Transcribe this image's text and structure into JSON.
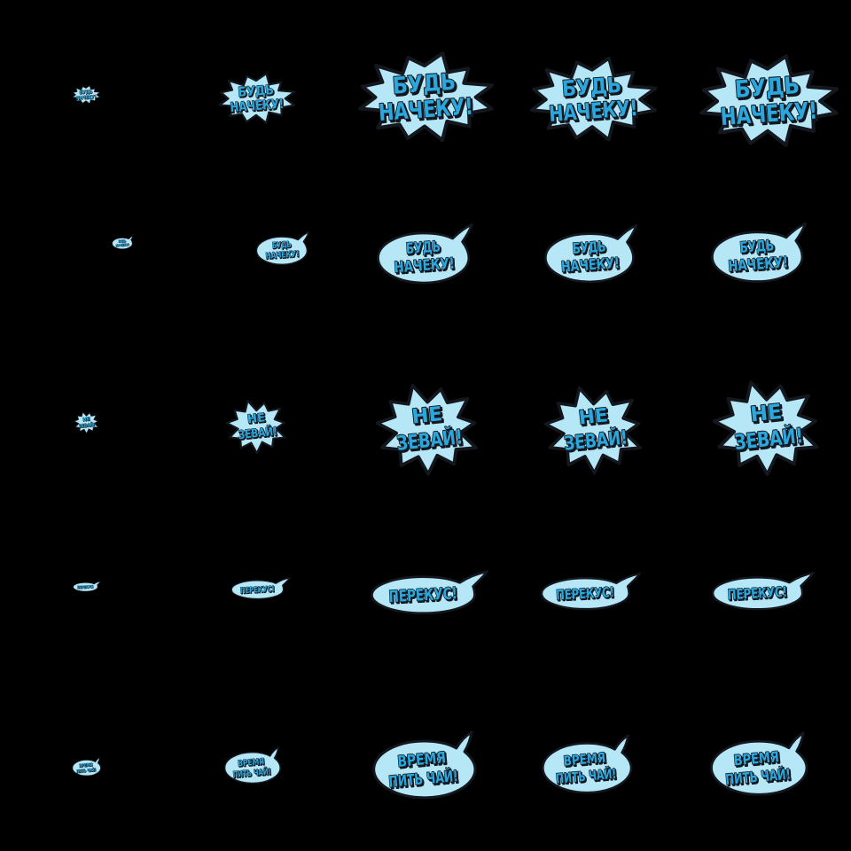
{
  "page": {
    "title": "sticker-pack-preview-sheet",
    "background_color": "#000000",
    "grid": {
      "rows": 5,
      "sizes_per_row": 5
    }
  },
  "palette": {
    "background": "#000000",
    "bubble_fill": "#b5e7f7",
    "bubble_fill_light": "#dcf3fb",
    "text_fill": "#2aa7dd",
    "outline": "#14171e"
  },
  "stickers": [
    {
      "id": "bud-nacheku-burst",
      "shape": "burst-wide",
      "text": "БУДЬ НАЧЕКУ!",
      "lines": [
        "БУДЬ",
        "НАЧЕКУ!"
      ]
    },
    {
      "id": "bud-nacheku-speech",
      "shape": "speech",
      "text": "БУДЬ НАЧЕКУ!",
      "lines": [
        "БУДЬ",
        "НАЧЕКУ!"
      ]
    },
    {
      "id": "ne-zevay-burst",
      "shape": "burst-tall",
      "text": "НЕ ЗЕВАЙ!",
      "lines": [
        "НЕ",
        "ЗЕВАЙ!"
      ]
    },
    {
      "id": "perekus-oval",
      "shape": "oval",
      "text": "ПЕРЕКУС!",
      "lines": [
        "ПЕРЕКУС!"
      ]
    },
    {
      "id": "vremya-pit-chay-cloud",
      "shape": "cloud",
      "text": "ВРЕМЯ ПИТЬ ЧАЙ!",
      "lines": [
        "ВРЕМЯ",
        "ПИТЬ ЧАЙ!"
      ]
    }
  ]
}
